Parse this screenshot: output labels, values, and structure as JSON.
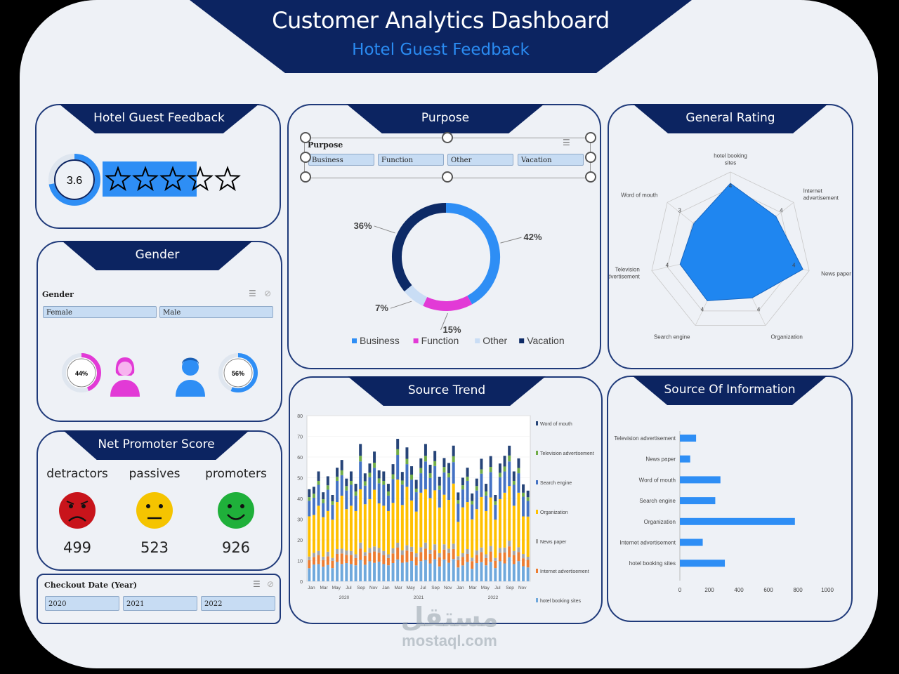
{
  "header": {
    "title": "Customer Analytics Dashboard",
    "subtitle": "Hotel Guest Feedback"
  },
  "rating_panel": {
    "title": "Hotel Guest Feedback",
    "score": "3.6",
    "score_value": 3.6,
    "max": 5
  },
  "gender_panel": {
    "title": "Gender",
    "slicer_title": "Gender",
    "options": [
      "Female",
      "Male"
    ],
    "female_pct": "44%",
    "male_pct": "56%",
    "female_value": 44,
    "male_value": 56
  },
  "nps_panel": {
    "title": "Net Promoter Score",
    "groups": [
      {
        "label": "detractors",
        "count": "499",
        "color": "#c8141b"
      },
      {
        "label": "passives",
        "count": "523",
        "color": "#f5c400"
      },
      {
        "label": "promoters",
        "count": "926",
        "color": "#1fb03a"
      }
    ]
  },
  "checkout_slicer": {
    "title": "Checkout Date (Year)",
    "options": [
      "2020",
      "2021",
      "2022"
    ]
  },
  "purpose_panel": {
    "title": "Purpose",
    "slicer_title": "Purpose",
    "options": [
      "Business",
      "Function",
      "Other",
      "Vacation"
    ]
  },
  "general_rating_panel": {
    "title": "General Rating"
  },
  "source_trend_panel": {
    "title": "Source Trend"
  },
  "source_info_panel": {
    "title": "Source Of Information"
  },
  "watermark": {
    "arabic": "مستقل",
    "latin": "mostaql.com"
  },
  "colors": {
    "navy": "#0c2461",
    "blue": "#2e8ef5",
    "magenta": "#e23ad6",
    "light": "#c9ddf5",
    "dark": "#0d2a66",
    "female": "#e23ad6",
    "male": "#2e8ef5"
  },
  "chart_data": [
    {
      "id": "purpose",
      "type": "pie",
      "categories": [
        "Business",
        "Function",
        "Other",
        "Vacation"
      ],
      "values": [
        42,
        15,
        7,
        36
      ],
      "labels": [
        "42%",
        "15%",
        "7%",
        "36%"
      ],
      "colors": [
        "#2e8ef5",
        "#e23ad6",
        "#c9ddf5",
        "#0d2a66"
      ],
      "legend": "bottom"
    },
    {
      "id": "general_rating",
      "type": "radar",
      "categories": [
        "hotel booking sites",
        "Internet advertisement",
        "News paper",
        "Organization",
        "Search engine",
        "Television advertisement",
        "Word of mouth"
      ],
      "values": [
        4.3,
        3.6,
        4.6,
        3.1,
        3.3,
        3.2,
        2.9
      ],
      "tick_labels": [
        "4",
        "4",
        "4",
        "4",
        "4",
        "4",
        "3"
      ],
      "rmax": 5
    },
    {
      "id": "source_information",
      "type": "bar",
      "orientation": "horizontal",
      "categories": [
        "Television advertisement",
        "News paper",
        "Word of mouth",
        "Search engine",
        "Organization",
        "Internet advertisement",
        "hotel booking sites"
      ],
      "values": [
        110,
        70,
        275,
        240,
        780,
        155,
        305
      ],
      "xlim": [
        0,
        1000
      ],
      "xticks": [
        "0",
        "200",
        "400",
        "600",
        "800",
        "1000"
      ]
    },
    {
      "id": "source_trend",
      "type": "bar",
      "stacked": true,
      "ylim": [
        0,
        80
      ],
      "yticks": [
        "0",
        "10",
        "20",
        "30",
        "40",
        "50",
        "60",
        "70",
        "80"
      ],
      "month_labels": [
        "Jan",
        "Mar",
        "May",
        "Jul",
        "Sep",
        "Nov"
      ],
      "years": [
        "2020",
        "2021",
        "2022"
      ],
      "totals": [
        44,
        46,
        52,
        42,
        52,
        40,
        54,
        58,
        50,
        52,
        46,
        68,
        50,
        56,
        62,
        54,
        52,
        46,
        58,
        66,
        52,
        64,
        56,
        48,
        58,
        68,
        54,
        62,
        50,
        60,
        56,
        64,
        44,
        48,
        54,
        42,
        50,
        58,
        46,
        62,
        40,
        56,
        60,
        66,
        52,
        58,
        48,
        42
      ],
      "series": [
        {
          "name": "hotel booking sites",
          "color": "#6fa8dc",
          "share": 0.16
        },
        {
          "name": "Internet advertisement",
          "color": "#ed7d31",
          "share": 0.08
        },
        {
          "name": "News paper",
          "color": "#a5a5a5",
          "share": 0.04
        },
        {
          "name": "Organization",
          "color": "#ffc000",
          "share": 0.42
        },
        {
          "name": "Search engine",
          "color": "#4472c4",
          "share": 0.18
        },
        {
          "name": "Television advertisement",
          "color": "#70ad47",
          "share": 0.04
        },
        {
          "name": "Word of mouth",
          "color": "#264478",
          "share": 0.08
        }
      ],
      "legend": "right"
    }
  ]
}
